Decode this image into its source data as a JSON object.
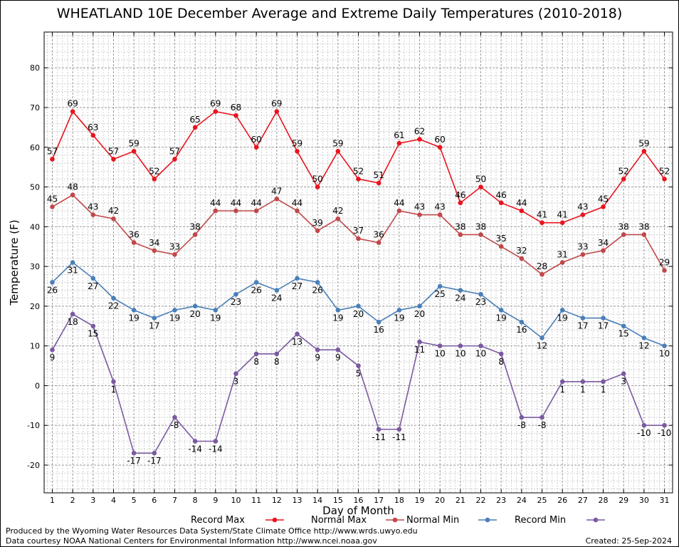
{
  "title": "WHEATLAND 10E December Average and Extreme Daily Temperatures (2010-2018)",
  "footer": {
    "produced_by": "Produced by the Wyoming Water Resources Data System/State Climate Office http://www.wrds.uwyo.edu",
    "courtesy": "Data courtesy NOAA National Centers for Environmental Information http://www.ncei.noaa.gov",
    "created": "Created: 25-Sep-2024"
  },
  "chart_data": {
    "type": "line",
    "title": "WHEATLAND 10E December Average and Extreme Daily Temperatures (2010-2018)",
    "xlabel": "Day of Month",
    "ylabel": "Temperature (F)",
    "xlim": [
      0.6,
      31.4
    ],
    "ylim": [
      -27,
      89
    ],
    "yticks": [
      -20,
      -10,
      0,
      10,
      20,
      30,
      40,
      50,
      60,
      70,
      80
    ],
    "x": [
      1,
      2,
      3,
      4,
      5,
      6,
      7,
      8,
      9,
      10,
      11,
      12,
      13,
      14,
      15,
      16,
      17,
      18,
      19,
      20,
      21,
      22,
      23,
      24,
      25,
      26,
      27,
      28,
      29,
      30,
      31
    ],
    "grid": true,
    "legend_position": "bottom",
    "series": [
      {
        "name": "Record Max",
        "color": "#e8141e",
        "label_position": "above",
        "values": [
          57,
          69,
          63,
          57,
          59,
          52,
          57,
          65,
          69,
          68,
          60,
          69,
          59,
          50,
          59,
          52,
          51,
          61,
          62,
          60,
          46,
          50,
          46,
          44,
          41,
          41,
          43,
          45,
          52,
          59,
          52
        ]
      },
      {
        "name": "Normal Max",
        "color": "#c0484a",
        "label_position": "above",
        "values": [
          45,
          48,
          43,
          42,
          36,
          34,
          33,
          38,
          44,
          44,
          44,
          47,
          44,
          39,
          42,
          37,
          36,
          44,
          43,
          43,
          38,
          38,
          35,
          32,
          28,
          31,
          33,
          34,
          38,
          38,
          29
        ]
      },
      {
        "name": "Normal Min",
        "color": "#4a7fb8",
        "label_position": "below",
        "values": [
          26,
          31,
          27,
          22,
          19,
          17,
          19,
          20,
          19,
          23,
          26,
          24,
          27,
          26,
          19,
          20,
          16,
          19,
          20,
          25,
          24,
          23,
          19,
          16,
          12,
          19,
          17,
          17,
          15,
          12,
          10
        ]
      },
      {
        "name": "Record Min",
        "color": "#7a5aa0",
        "label_position": "below",
        "values": [
          9,
          18,
          15,
          1,
          -17,
          -17,
          -8,
          -14,
          -14,
          3,
          8,
          8,
          13,
          9,
          9,
          5,
          -11,
          -11,
          11,
          10,
          10,
          10,
          8,
          -8,
          -8,
          1,
          1,
          1,
          3,
          -10,
          -10
        ]
      }
    ]
  }
}
